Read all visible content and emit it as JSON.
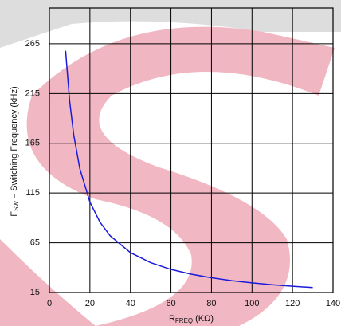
{
  "chart_data": {
    "type": "line",
    "x_label": {
      "main": "R",
      "sub": "FREQ",
      "unit": "(KΩ)"
    },
    "y_label": {
      "main": "F",
      "sub": "SW",
      "rest": " – Switching Frequency (kHz)"
    },
    "x": [
      8,
      10,
      12,
      15,
      20,
      25,
      30,
      40,
      50,
      60,
      70,
      80,
      90,
      100,
      110,
      120,
      130
    ],
    "series": [
      {
        "color": "#1a1adc",
        "values": [
          258,
          207.3,
          173.5,
          139.7,
          105.9,
          85.6,
          72.0,
          55.1,
          45.0,
          38.2,
          33.4,
          29.8,
          26.9,
          24.7,
          22.8,
          21.3,
          20.0
        ]
      }
    ],
    "xlim": [
      0,
      140
    ],
    "xticks": [
      0,
      20,
      40,
      60,
      80,
      100,
      120,
      140
    ],
    "ylim": [
      15,
      301
    ],
    "yticks": [
      15,
      65,
      115,
      165,
      215,
      265
    ],
    "grid": true
  }
}
